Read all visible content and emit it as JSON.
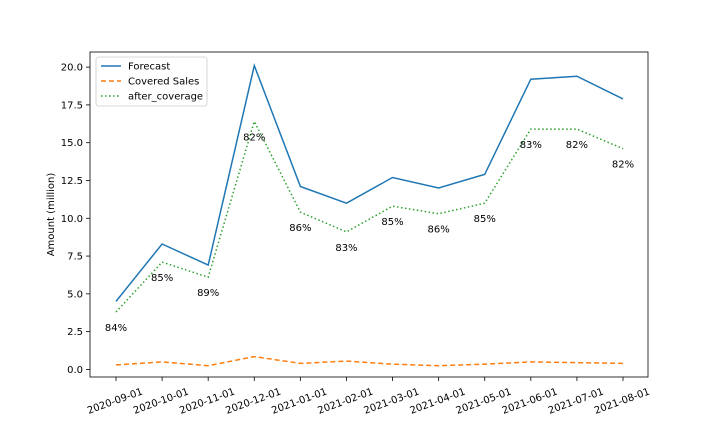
{
  "chart_data": {
    "type": "line",
    "title": "",
    "xlabel": "",
    "ylabel": "Amount (million)",
    "categories": [
      "2020-09-01",
      "2020-10-01",
      "2020-11-01",
      "2020-12-01",
      "2021-01-01",
      "2021-02-01",
      "2021-03-01",
      "2021-04-01",
      "2021-05-01",
      "2021-06-01",
      "2021-07-01",
      "2021-08-01"
    ],
    "yticks": [
      "0.0",
      "2.5",
      "5.0",
      "7.5",
      "10.0",
      "12.5",
      "15.0",
      "17.5",
      "20.0"
    ],
    "ylim": [
      -0.5,
      21.0
    ],
    "legend_position": "top-left",
    "series": [
      {
        "name": "Forecast",
        "color": "#1f77b4",
        "dash": "solid",
        "values": [
          4.5,
          8.3,
          6.9,
          20.1,
          12.1,
          11.0,
          12.7,
          12.0,
          12.9,
          19.2,
          19.4,
          17.9
        ]
      },
      {
        "name": "Covered Sales",
        "color": "#ff7f0e",
        "dash": "dashed",
        "values": [
          0.3,
          0.5,
          0.25,
          0.85,
          0.4,
          0.55,
          0.35,
          0.25,
          0.35,
          0.5,
          0.45,
          0.4
        ]
      },
      {
        "name": "after_coverage",
        "color": "#2ca02c",
        "dash": "dotted",
        "values": [
          3.8,
          7.1,
          6.1,
          16.4,
          10.4,
          9.1,
          10.8,
          10.3,
          11.0,
          15.9,
          15.9,
          14.6
        ]
      }
    ],
    "annotations": [
      "84%",
      "85%",
      "89%",
      "82%",
      "86%",
      "83%",
      "85%",
      "86%",
      "85%",
      "83%",
      "82%",
      "82%"
    ]
  }
}
